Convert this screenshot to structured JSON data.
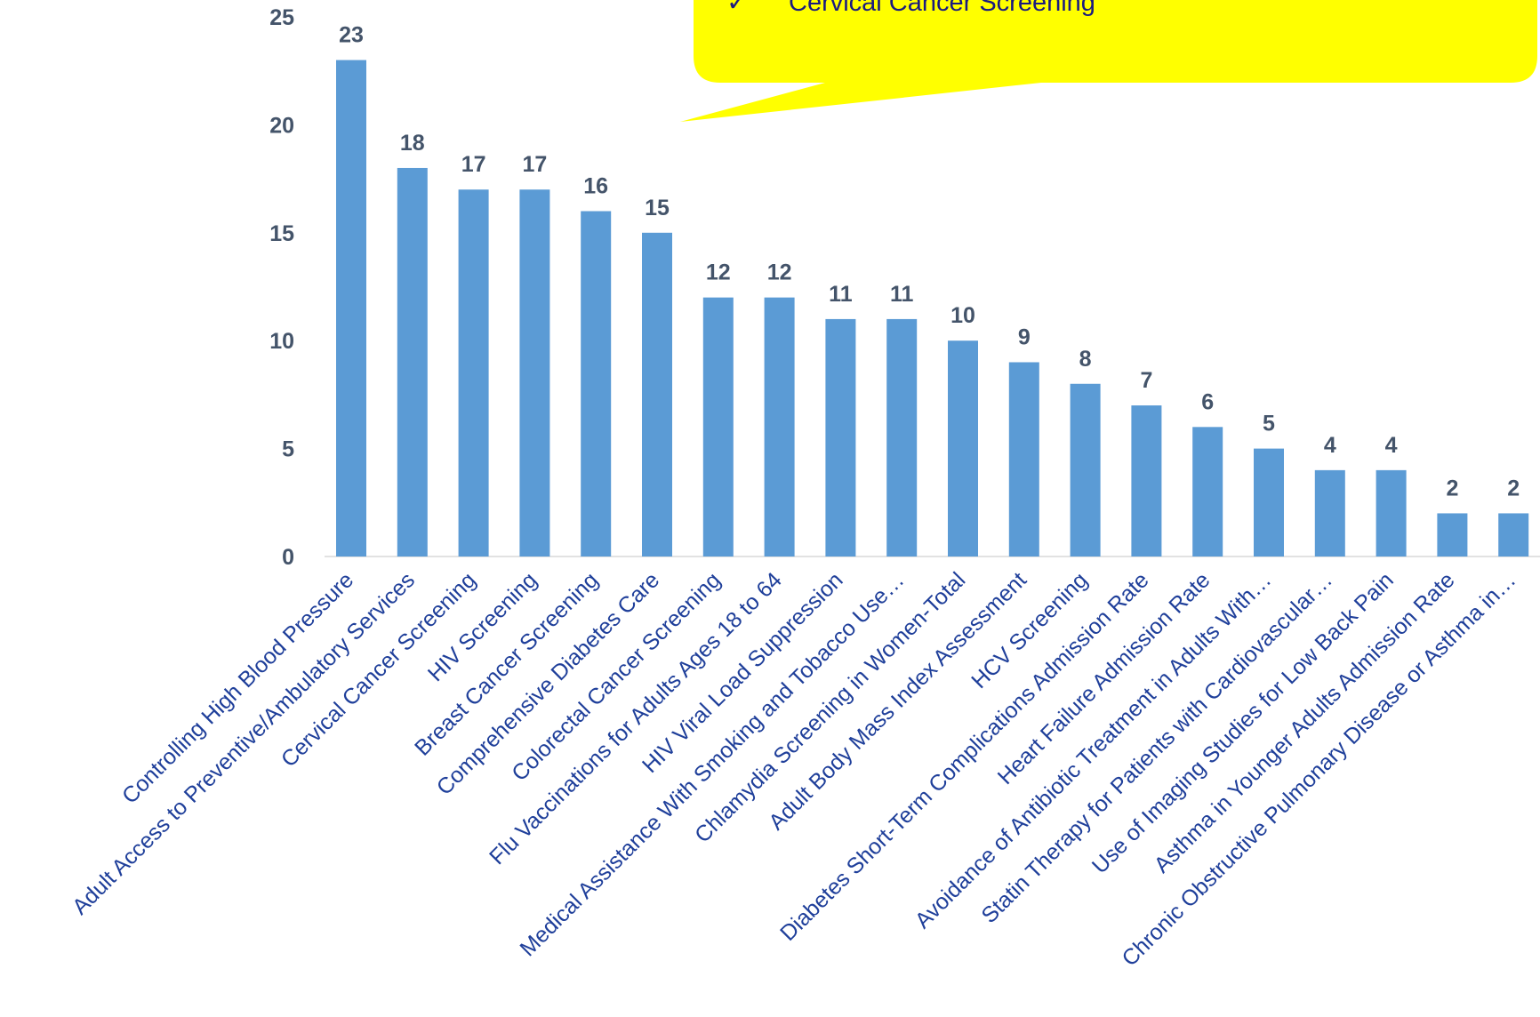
{
  "chart_data": {
    "type": "bar",
    "categories": [
      "Controlling High Blood Pressure",
      "Adult Access to Preventive/Ambulatory Services",
      "Cervical Cancer Screening",
      "HIV Screening",
      "Breast Cancer Screening",
      "Comprehensive Diabetes Care",
      "Colorectal Cancer Screening",
      "Flu Vaccinations for Adults Ages 18 to 64",
      "HIV Viral Load Suppression",
      "Medical Assistance With Smoking and Tobacco Use…",
      "Chlamydia Screening in Women-Total",
      "Adult Body Mass Index Assessment",
      "HCV Screening",
      "Diabetes Short-Term Complications Admission Rate",
      "Heart Failure Admission Rate",
      "Avoidance of Antibiotic Treatment in Adults With…",
      "Statin Therapy for Patients with Cardiovascular…",
      "Use of Imaging Studies for Low Back Pain",
      "Asthma in Younger Adults Admission Rate",
      "Chronic Obstructive Pulmonary Disease or Asthma in…"
    ],
    "values": [
      23,
      18,
      17,
      17,
      16,
      15,
      12,
      12,
      11,
      11,
      10,
      9,
      8,
      7,
      6,
      5,
      4,
      4,
      2,
      2
    ],
    "color": "#5b9bd5",
    "ylim": [
      0,
      25
    ],
    "yticks": [
      0,
      5,
      10,
      15,
      20,
      25
    ],
    "grid": false,
    "callout": {
      "bullet": "✓",
      "text": "Cervical Cancer Screening",
      "color": "#ffff00"
    }
  }
}
